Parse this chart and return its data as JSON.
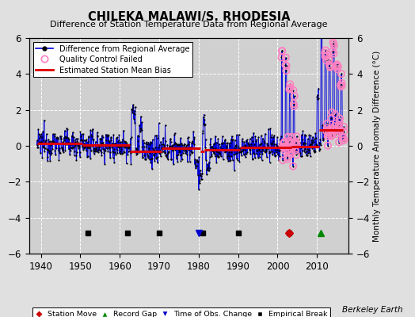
{
  "title": "CHILEKA MALAWI/S. RHODESIA",
  "subtitle": "Difference of Station Temperature Data from Regional Average",
  "ylabel": "Monthly Temperature Anomaly Difference (°C)",
  "credit": "Berkeley Earth",
  "xlim": [
    1937,
    2018
  ],
  "ylim": [
    -6,
    6
  ],
  "yticks": [
    -6,
    -4,
    -2,
    0,
    2,
    4,
    6
  ],
  "xticks": [
    1940,
    1950,
    1960,
    1970,
    1980,
    1990,
    2000,
    2010
  ],
  "bg_color": "#e0e0e0",
  "plot_bg_color": "#d0d0d0",
  "grid_color": "#ffffff",
  "line_color": "#0000dd",
  "bias_color": "#dd0000",
  "data_color": "#000000",
  "qc_color": "#ff80c0",
  "station_move_color": "#cc0000",
  "record_gap_color": "#008800",
  "obs_change_color": "#0000cc",
  "empirical_break_color": "#000000",
  "segments": [
    {
      "start": 1939.0,
      "end": 1950.5,
      "bias": 0.12
    },
    {
      "start": 1950.5,
      "end": 1962.5,
      "bias": 0.05
    },
    {
      "start": 1962.5,
      "end": 1970.5,
      "bias": -0.3
    },
    {
      "start": 1970.5,
      "end": 1980.5,
      "bias": -0.12
    },
    {
      "start": 1980.5,
      "end": 1981.5,
      "bias": -0.3
    },
    {
      "start": 1981.5,
      "end": 1990.5,
      "bias": -0.2
    },
    {
      "start": 1990.5,
      "end": 2003.5,
      "bias": -0.1
    },
    {
      "start": 2003.5,
      "end": 2010.5,
      "bias": -0.05
    },
    {
      "start": 2010.5,
      "end": 2016.5,
      "bias": 0.9
    }
  ],
  "empirical_breaks": [
    1952,
    1962,
    1970,
    1981,
    1990,
    2003
  ],
  "station_moves": [
    2003
  ],
  "record_gaps": [
    2011
  ],
  "obs_changes": [
    1980
  ],
  "qc_years": [
    2001,
    2002,
    2003,
    2004,
    2012,
    2013,
    2014,
    2015,
    2016
  ],
  "spike_events": {
    "1963": {
      "val": 2.2,
      "spread": 0.7,
      "months": 12
    },
    "1965": {
      "val": 1.4,
      "spread": 0.5,
      "months": 8
    },
    "1979": {
      "val": -0.8,
      "spread": 0.6,
      "months": 12
    },
    "1980": {
      "val": -1.5,
      "spread": 1.2,
      "months": 12
    },
    "1981": {
      "val": 1.3,
      "spread": 0.8,
      "months": 8
    },
    "1982": {
      "val": -1.0,
      "spread": 0.7,
      "months": 10
    },
    "2001": {
      "val": 5.2,
      "spread": 0.5,
      "months": 3
    },
    "2002": {
      "val": 4.5,
      "spread": 0.6,
      "months": 4
    },
    "2003": {
      "val": 3.2,
      "spread": 0.7,
      "months": 4
    },
    "2004": {
      "val": 2.8,
      "spread": 0.8,
      "months": 4
    },
    "2010": {
      "val": 3.0,
      "spread": 0.8,
      "months": 5
    },
    "2011": {
      "val": 5.3,
      "spread": 0.4,
      "months": 4
    },
    "2012": {
      "val": 4.2,
      "spread": 0.6,
      "months": 5
    },
    "2013": {
      "val": 3.8,
      "spread": 0.7,
      "months": 5
    },
    "2014": {
      "val": 4.6,
      "spread": 0.5,
      "months": 5
    },
    "2015": {
      "val": 3.5,
      "spread": 0.6,
      "months": 5
    },
    "2016": {
      "val": 2.5,
      "spread": 0.7,
      "months": 5
    }
  }
}
